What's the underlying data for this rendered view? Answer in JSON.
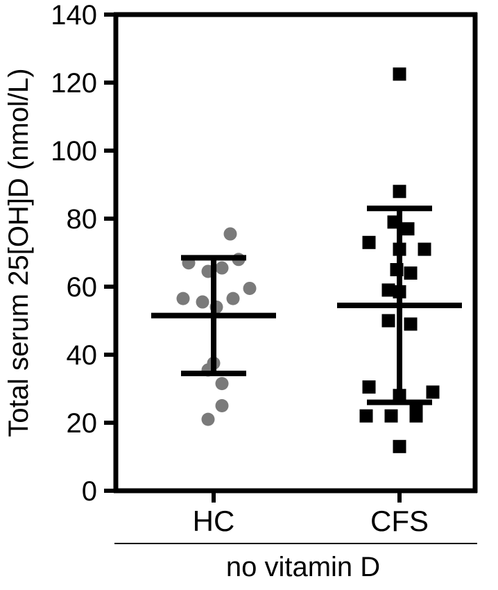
{
  "chart_data": {
    "type": "scatter",
    "ylabel": "Total serum 25[OH]D (nmol/L)",
    "ylim": [
      0,
      140
    ],
    "yticks": [
      0,
      20,
      40,
      60,
      80,
      100,
      120,
      140
    ],
    "categories": [
      "HC",
      "CFS"
    ],
    "group_label": "no vitamin D",
    "grid": false,
    "series": [
      {
        "category": "HC",
        "marker": "circle",
        "color": "#7a7a7a",
        "points": [
          {
            "offset": 0.3,
            "value": 75.5
          },
          {
            "offset": -0.45,
            "value": 67
          },
          {
            "offset": -0.1,
            "value": 64.5
          },
          {
            "offset": 0.15,
            "value": 65.5
          },
          {
            "offset": 0.45,
            "value": 68
          },
          {
            "offset": -0.55,
            "value": 56.5
          },
          {
            "offset": -0.2,
            "value": 55.5
          },
          {
            "offset": 0.05,
            "value": 54
          },
          {
            "offset": 0.35,
            "value": 56.5
          },
          {
            "offset": 0.65,
            "value": 59.5
          },
          {
            "offset": 0.0,
            "value": 37.5
          },
          {
            "offset": -0.1,
            "value": 35.5
          },
          {
            "offset": 0.15,
            "value": 31.5
          },
          {
            "offset": 0.15,
            "value": 25
          },
          {
            "offset": -0.1,
            "value": 21
          }
        ],
        "mean": 51.5,
        "sd_upper": 68.5,
        "sd_lower": 34.5,
        "bar_color": "#000000"
      },
      {
        "category": "CFS",
        "marker": "square",
        "color": "#000000",
        "points": [
          {
            "offset": 0.0,
            "value": 122.5
          },
          {
            "offset": 0.0,
            "value": 88
          },
          {
            "offset": -0.1,
            "value": 79
          },
          {
            "offset": 0.15,
            "value": 77
          },
          {
            "offset": -0.55,
            "value": 73
          },
          {
            "offset": 0.0,
            "value": 71
          },
          {
            "offset": 0.45,
            "value": 71
          },
          {
            "offset": -0.05,
            "value": 65
          },
          {
            "offset": 0.2,
            "value": 64
          },
          {
            "offset": -0.2,
            "value": 59
          },
          {
            "offset": 0.0,
            "value": 58.5
          },
          {
            "offset": -0.2,
            "value": 50
          },
          {
            "offset": 0.2,
            "value": 49
          },
          {
            "offset": -0.55,
            "value": 30.5
          },
          {
            "offset": 0.0,
            "value": 28
          },
          {
            "offset": 0.6,
            "value": 29
          },
          {
            "offset": -0.6,
            "value": 22
          },
          {
            "offset": -0.15,
            "value": 22
          },
          {
            "offset": 0.3,
            "value": 22
          },
          {
            "offset": 0.3,
            "value": 24
          },
          {
            "offset": 0.0,
            "value": 13
          }
        ],
        "mean": 54.5,
        "sd_upper": 83,
        "sd_lower": 26,
        "bar_color": "#000000"
      }
    ]
  }
}
